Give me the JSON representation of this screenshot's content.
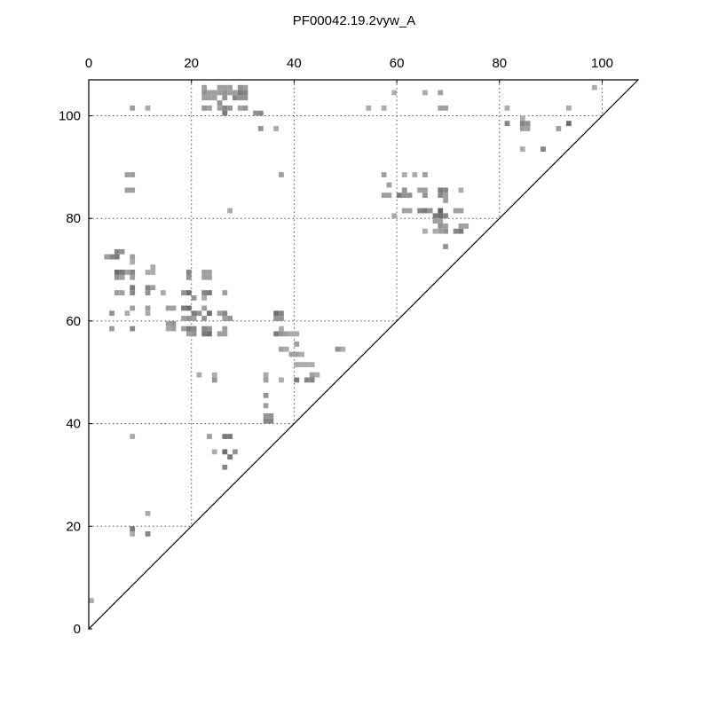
{
  "chart_data": {
    "type": "heatmap",
    "title": "PF00042.19.2vyw_A",
    "xlabel": "",
    "ylabel": "",
    "xlim": [
      0,
      107
    ],
    "ylim": [
      0,
      107
    ],
    "x_ticks": [
      0,
      20,
      40,
      60,
      80,
      100
    ],
    "y_ticks": [
      0,
      20,
      40,
      60,
      80,
      100
    ],
    "x_tick_labels": [
      "0",
      "20",
      "40",
      "60",
      "80",
      "100"
    ],
    "y_tick_labels": [
      "0",
      "20",
      "40",
      "60",
      "80",
      "100"
    ],
    "x_axis_position": "top",
    "grid": true,
    "triangle": "upper-left",
    "colormap": "greys",
    "color_dark": "#555555",
    "color_light": "#d0d0d0",
    "points": [
      [
        0,
        5,
        0.3
      ],
      [
        8,
        18,
        0.3
      ],
      [
        8,
        19,
        0.7
      ],
      [
        11,
        18,
        0.6
      ],
      [
        11,
        22,
        0.3
      ],
      [
        8,
        37,
        0.3
      ],
      [
        23,
        37,
        0.4
      ],
      [
        26,
        37,
        0.7
      ],
      [
        27,
        37,
        0.7
      ],
      [
        24,
        34,
        0.3
      ],
      [
        26,
        34,
        0.8
      ],
      [
        27,
        33,
        0.7
      ],
      [
        28,
        34,
        0.5
      ],
      [
        26,
        31,
        0.6
      ],
      [
        34,
        40,
        0.6
      ],
      [
        35,
        40,
        0.6
      ],
      [
        34,
        41,
        0.5
      ],
      [
        35,
        41,
        0.5
      ],
      [
        34,
        43,
        0.4
      ],
      [
        34,
        45,
        0.5
      ],
      [
        34,
        48,
        0.4
      ],
      [
        34,
        49,
        0.3
      ],
      [
        21,
        49,
        0.3
      ],
      [
        24,
        48,
        0.5
      ],
      [
        24,
        49,
        0.3
      ],
      [
        37,
        48,
        0.3
      ],
      [
        40,
        48,
        0.7
      ],
      [
        42,
        48,
        0.6
      ],
      [
        43,
        48,
        0.6
      ],
      [
        43,
        49,
        0.4
      ],
      [
        44,
        49,
        0.3
      ],
      [
        40,
        51,
        0.3
      ],
      [
        41,
        51,
        0.3
      ],
      [
        42,
        51,
        0.3
      ],
      [
        43,
        51,
        0.3
      ],
      [
        39,
        53,
        0.4
      ],
      [
        40,
        53,
        0.4
      ],
      [
        41,
        53,
        0.3
      ],
      [
        37,
        54,
        0.4
      ],
      [
        38,
        54,
        0.3
      ],
      [
        40,
        55,
        0.4
      ],
      [
        36,
        57,
        0.7
      ],
      [
        37,
        57,
        0.5
      ],
      [
        38,
        57,
        0.4
      ],
      [
        39,
        57,
        0.3
      ],
      [
        40,
        57,
        0.3
      ],
      [
        37,
        58,
        0.3
      ],
      [
        36,
        60,
        0.5
      ],
      [
        37,
        60,
        0.5
      ],
      [
        36,
        61,
        0.8
      ],
      [
        37,
        61,
        0.6
      ],
      [
        48,
        54,
        0.5
      ],
      [
        49,
        54,
        0.3
      ],
      [
        4,
        58,
        0.4
      ],
      [
        8,
        58,
        0.6
      ],
      [
        4,
        61,
        0.5
      ],
      [
        7,
        61,
        0.3
      ],
      [
        8,
        62,
        0.4
      ],
      [
        11,
        61,
        0.3
      ],
      [
        11,
        62,
        0.4
      ],
      [
        15,
        62,
        0.4
      ],
      [
        16,
        62,
        0.4
      ],
      [
        15,
        59,
        0.4
      ],
      [
        16,
        59,
        0.5
      ],
      [
        15,
        58,
        0.3
      ],
      [
        16,
        58,
        0.4
      ],
      [
        18,
        58,
        0.4
      ],
      [
        19,
        58,
        0.7
      ],
      [
        20,
        58,
        0.6
      ],
      [
        19,
        57,
        0.4
      ],
      [
        20,
        57,
        0.5
      ],
      [
        18,
        60,
        0.4
      ],
      [
        19,
        60,
        0.5
      ],
      [
        20,
        60,
        0.4
      ],
      [
        18,
        62,
        0.7
      ],
      [
        19,
        62,
        0.8
      ],
      [
        20,
        61,
        0.7
      ],
      [
        21,
        61,
        0.5
      ],
      [
        22,
        57,
        0.7
      ],
      [
        23,
        57,
        0.8
      ],
      [
        22,
        58,
        0.6
      ],
      [
        23,
        58,
        0.5
      ],
      [
        25,
        57,
        0.4
      ],
      [
        26,
        57,
        0.4
      ],
      [
        26,
        58,
        0.4
      ],
      [
        22,
        60,
        0.5
      ],
      [
        23,
        61,
        0.8
      ],
      [
        22,
        62,
        0.4
      ],
      [
        25,
        61,
        0.4
      ],
      [
        26,
        61,
        0.6
      ],
      [
        27,
        60,
        0.5
      ],
      [
        26,
        60,
        0.4
      ],
      [
        18,
        65,
        0.5
      ],
      [
        19,
        65,
        0.8
      ],
      [
        20,
        64,
        0.5
      ],
      [
        22,
        65,
        0.6
      ],
      [
        23,
        65,
        0.7
      ],
      [
        22,
        64,
        0.3
      ],
      [
        26,
        65,
        0.4
      ],
      [
        5,
        65,
        0.4
      ],
      [
        6,
        65,
        0.4
      ],
      [
        8,
        65,
        0.6
      ],
      [
        8,
        66,
        0.7
      ],
      [
        11,
        65,
        0.5
      ],
      [
        11,
        66,
        0.6
      ],
      [
        12,
        66,
        0.4
      ],
      [
        14,
        65,
        0.3
      ],
      [
        5,
        68,
        0.5
      ],
      [
        6,
        68,
        0.4
      ],
      [
        8,
        68,
        0.4
      ],
      [
        5,
        69,
        0.8
      ],
      [
        6,
        69,
        0.7
      ],
      [
        8,
        69,
        0.6
      ],
      [
        7,
        69,
        0.4
      ],
      [
        11,
        69,
        0.3
      ],
      [
        12,
        69,
        0.3
      ],
      [
        12,
        70,
        0.3
      ],
      [
        19,
        68,
        0.5
      ],
      [
        19,
        69,
        0.6
      ],
      [
        22,
        68,
        0.4
      ],
      [
        23,
        68,
        0.4
      ],
      [
        22,
        69,
        0.4
      ],
      [
        23,
        69,
        0.4
      ],
      [
        3,
        72,
        0.4
      ],
      [
        4,
        72,
        0.6
      ],
      [
        5,
        72,
        0.7
      ],
      [
        5,
        73,
        0.6
      ],
      [
        6,
        73,
        0.5
      ],
      [
        8,
        72,
        0.4
      ],
      [
        8,
        71,
        0.3
      ],
      [
        7,
        85,
        0.4
      ],
      [
        8,
        85,
        0.4
      ],
      [
        7,
        88,
        0.4
      ],
      [
        8,
        88,
        0.4
      ],
      [
        27,
        81,
        0.3
      ],
      [
        37,
        88,
        0.4
      ],
      [
        57,
        88,
        0.4
      ],
      [
        58,
        86,
        0.4
      ],
      [
        57,
        84,
        0.4
      ],
      [
        58,
        84,
        0.4
      ],
      [
        59,
        80,
        0.3
      ],
      [
        60,
        84,
        0.7
      ],
      [
        61,
        84,
        0.5
      ],
      [
        62,
        84,
        0.5
      ],
      [
        61,
        85,
        0.5
      ],
      [
        61,
        88,
        0.3
      ],
      [
        63,
        88,
        0.3
      ],
      [
        61,
        81,
        0.4
      ],
      [
        62,
        81,
        0.4
      ],
      [
        64,
        81,
        0.6
      ],
      [
        65,
        81,
        0.7
      ],
      [
        66,
        81,
        0.5
      ],
      [
        67,
        80,
        0.7
      ],
      [
        68,
        80,
        0.8
      ],
      [
        68,
        81,
        0.9
      ],
      [
        69,
        80,
        0.6
      ],
      [
        64,
        85,
        0.4
      ],
      [
        65,
        84,
        0.5
      ],
      [
        65,
        85,
        0.4
      ],
      [
        68,
        84,
        0.6
      ],
      [
        68,
        85,
        0.7
      ],
      [
        69,
        85,
        0.6
      ],
      [
        69,
        84,
        0.4
      ],
      [
        65,
        88,
        0.4
      ],
      [
        69,
        83,
        0.4
      ],
      [
        67,
        79,
        0.4
      ],
      [
        68,
        79,
        0.4
      ],
      [
        68,
        78,
        0.5
      ],
      [
        69,
        78,
        0.4
      ],
      [
        68,
        77,
        0.4
      ],
      [
        69,
        77,
        0.5
      ],
      [
        67,
        77,
        0.3
      ],
      [
        65,
        77,
        0.3
      ],
      [
        69,
        74,
        0.5
      ],
      [
        71,
        81,
        0.4
      ],
      [
        72,
        81,
        0.4
      ],
      [
        71,
        77,
        0.6
      ],
      [
        72,
        77,
        0.7
      ],
      [
        72,
        78,
        0.4
      ],
      [
        73,
        78,
        0.4
      ],
      [
        72,
        85,
        0.3
      ],
      [
        57,
        101,
        0.3
      ],
      [
        59,
        104,
        0.3
      ],
      [
        65,
        104,
        0.3
      ],
      [
        68,
        104,
        0.4
      ],
      [
        68,
        101,
        0.4
      ],
      [
        69,
        101,
        0.4
      ],
      [
        54,
        101,
        0.3
      ],
      [
        33,
        97,
        0.5
      ],
      [
        36,
        97,
        0.3
      ],
      [
        22,
        101,
        0.5
      ],
      [
        23,
        101,
        0.4
      ],
      [
        25,
        101,
        0.4
      ],
      [
        26,
        101,
        0.6
      ],
      [
        26,
        100,
        0.7
      ],
      [
        27,
        101,
        0.5
      ],
      [
        29,
        101,
        0.4
      ],
      [
        30,
        101,
        0.5
      ],
      [
        32,
        100,
        0.5
      ],
      [
        33,
        100,
        0.6
      ],
      [
        22,
        103,
        0.4
      ],
      [
        23,
        103,
        0.4
      ],
      [
        24,
        103,
        0.4
      ],
      [
        25,
        102,
        0.5
      ],
      [
        26,
        103,
        0.5
      ],
      [
        28,
        103,
        0.6
      ],
      [
        29,
        103,
        0.5
      ],
      [
        30,
        103,
        0.5
      ],
      [
        22,
        104,
        0.5
      ],
      [
        23,
        104,
        0.4
      ],
      [
        24,
        104,
        0.4
      ],
      [
        25,
        104,
        0.4
      ],
      [
        26,
        104,
        0.5
      ],
      [
        27,
        104,
        0.4
      ],
      [
        28,
        104,
        0.4
      ],
      [
        29,
        104,
        0.7
      ],
      [
        30,
        104,
        0.6
      ],
      [
        22,
        105,
        0.4
      ],
      [
        25,
        105,
        0.4
      ],
      [
        26,
        105,
        0.4
      ],
      [
        27,
        105,
        0.4
      ],
      [
        29,
        105,
        0.5
      ],
      [
        30,
        105,
        0.4
      ],
      [
        8,
        101,
        0.4
      ],
      [
        11,
        101,
        0.3
      ],
      [
        81,
        101,
        0.3
      ],
      [
        81,
        98,
        0.6
      ],
      [
        84,
        99,
        0.3
      ],
      [
        84,
        98,
        0.6
      ],
      [
        85,
        98,
        0.5
      ],
      [
        84,
        97,
        0.4
      ],
      [
        85,
        97,
        0.4
      ],
      [
        84,
        93,
        0.3
      ],
      [
        88,
        93,
        0.6
      ],
      [
        91,
        97,
        0.4
      ],
      [
        93,
        98,
        0.8
      ],
      [
        93,
        101,
        0.3
      ],
      [
        98,
        105,
        0.3
      ]
    ]
  }
}
